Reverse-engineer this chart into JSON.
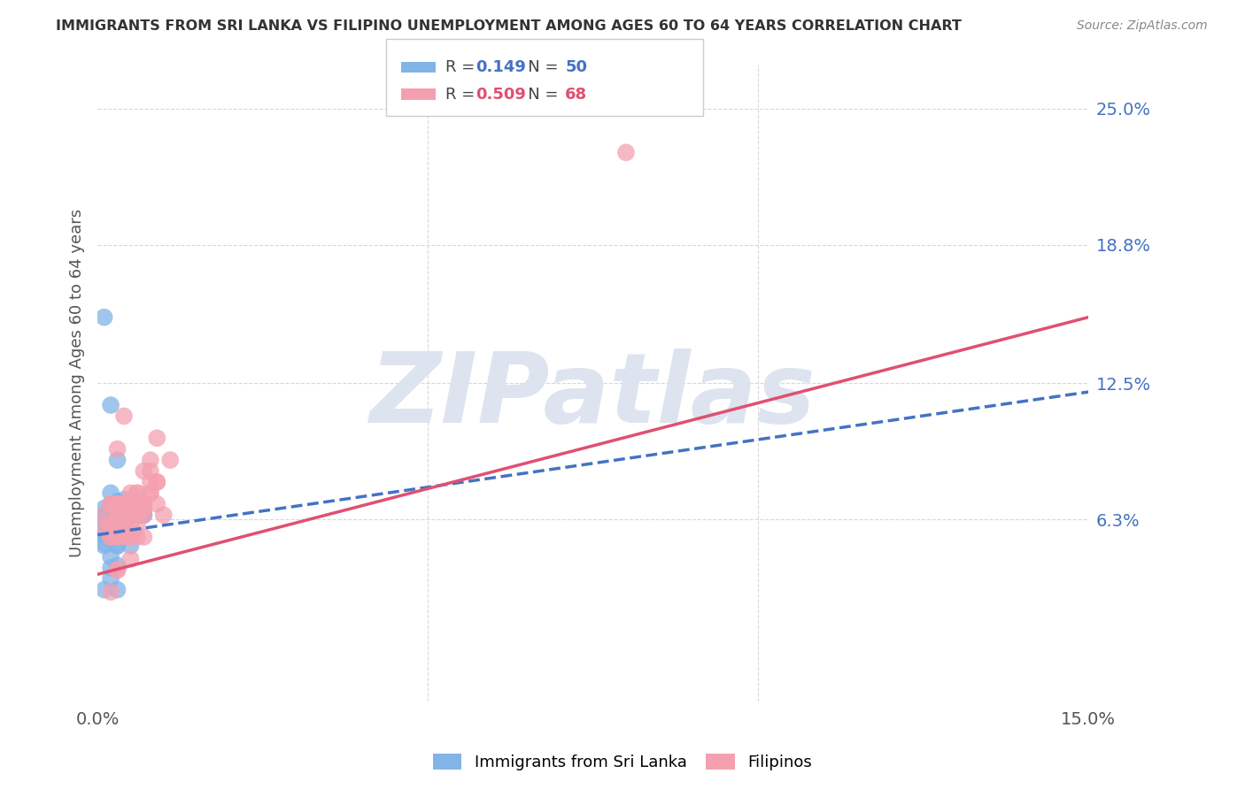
{
  "title": "IMMIGRANTS FROM SRI LANKA VS FILIPINO UNEMPLOYMENT AMONG AGES 60 TO 64 YEARS CORRELATION CHART",
  "source": "Source: ZipAtlas.com",
  "ylabel_label": "Unemployment Among Ages 60 to 64 years",
  "sri_lanka_R": "0.149",
  "sri_lanka_N": "50",
  "filipino_R": "0.509",
  "filipino_N": "68",
  "xlim": [
    0.0,
    0.15
  ],
  "ylim": [
    -0.02,
    0.27
  ],
  "ytick_vals": [
    0.063,
    0.125,
    0.188,
    0.25
  ],
  "ytick_labels": [
    "6.3%",
    "12.5%",
    "18.8%",
    "25.0%"
  ],
  "xtick_vals": [
    0.0,
    0.05,
    0.1,
    0.15
  ],
  "xtick_labels": [
    "0.0%",
    "",
    "",
    "15.0%"
  ],
  "watermark_text": "ZIPatlas",
  "sri_lanka_scatter_x": [
    0.001,
    0.002,
    0.003,
    0.001,
    0.004,
    0.006,
    0.003,
    0.004,
    0.002,
    0.001,
    0.005,
    0.003,
    0.002,
    0.003,
    0.004,
    0.002,
    0.001,
    0.003,
    0.005,
    0.007,
    0.002,
    0.003,
    0.004,
    0.001,
    0.002,
    0.003,
    0.004,
    0.002,
    0.003,
    0.001,
    0.002,
    0.003,
    0.001,
    0.002,
    0.004,
    0.003,
    0.005,
    0.002,
    0.001,
    0.003,
    0.006,
    0.002,
    0.003,
    0.001,
    0.004,
    0.002,
    0.003,
    0.007,
    0.001,
    0.002
  ],
  "sri_lanka_scatter_y": [
    0.155,
    0.115,
    0.09,
    0.068,
    0.063,
    0.068,
    0.058,
    0.063,
    0.075,
    0.052,
    0.065,
    0.057,
    0.07,
    0.062,
    0.072,
    0.055,
    0.065,
    0.058,
    0.07,
    0.065,
    0.056,
    0.042,
    0.062,
    0.056,
    0.065,
    0.056,
    0.065,
    0.055,
    0.065,
    0.056,
    0.046,
    0.051,
    0.062,
    0.056,
    0.061,
    0.031,
    0.051,
    0.036,
    0.062,
    0.071,
    0.071,
    0.065,
    0.051,
    0.051,
    0.055,
    0.041,
    0.071,
    0.065,
    0.031,
    0.065
  ],
  "filipino_scatter_x": [
    0.001,
    0.002,
    0.003,
    0.004,
    0.005,
    0.002,
    0.006,
    0.003,
    0.004,
    0.001,
    0.005,
    0.003,
    0.006,
    0.004,
    0.002,
    0.005,
    0.003,
    0.005,
    0.007,
    0.004,
    0.002,
    0.005,
    0.003,
    0.004,
    0.002,
    0.005,
    0.003,
    0.005,
    0.002,
    0.004,
    0.006,
    0.003,
    0.004,
    0.002,
    0.003,
    0.005,
    0.003,
    0.004,
    0.006,
    0.003,
    0.007,
    0.005,
    0.006,
    0.007,
    0.004,
    0.008,
    0.006,
    0.008,
    0.005,
    0.007,
    0.008,
    0.007,
    0.009,
    0.008,
    0.006,
    0.009,
    0.01,
    0.009,
    0.008,
    0.007,
    0.011,
    0.009,
    0.08,
    0.004,
    0.003,
    0.006,
    0.005,
    0.007
  ],
  "filipino_scatter_y": [
    0.065,
    0.055,
    0.065,
    0.06,
    0.055,
    0.07,
    0.06,
    0.055,
    0.065,
    0.06,
    0.07,
    0.065,
    0.055,
    0.065,
    0.06,
    0.07,
    0.04,
    0.065,
    0.055,
    0.07,
    0.03,
    0.055,
    0.065,
    0.07,
    0.055,
    0.045,
    0.065,
    0.06,
    0.07,
    0.055,
    0.065,
    0.04,
    0.065,
    0.06,
    0.055,
    0.065,
    0.07,
    0.06,
    0.065,
    0.07,
    0.07,
    0.075,
    0.065,
    0.07,
    0.065,
    0.08,
    0.07,
    0.075,
    0.065,
    0.07,
    0.075,
    0.065,
    0.08,
    0.085,
    0.075,
    0.07,
    0.065,
    0.08,
    0.09,
    0.085,
    0.09,
    0.1,
    0.23,
    0.11,
    0.095,
    0.075,
    0.068,
    0.068
  ],
  "sri_lanka_line_x": [
    0.0,
    0.15
  ],
  "sri_lanka_line_y": [
    0.056,
    0.121
  ],
  "filipino_line_x": [
    0.0,
    0.15
  ],
  "filipino_line_y": [
    0.038,
    0.155
  ],
  "scatter_color_sri_lanka": "#82b4e8",
  "scatter_color_filipino": "#f4a0b0",
  "line_color_sri_lanka": "#4472c4",
  "line_color_filipino": "#e05070",
  "watermark_color": "#dde4ef",
  "bg_color": "#ffffff",
  "grid_color": "#d8d8d8",
  "legend_box_color": "#eeeeee",
  "legend_border_color": "#cccccc",
  "right_tick_color": "#4472c4",
  "title_color": "#333333",
  "source_color": "#888888",
  "ylabel_color": "#555555"
}
